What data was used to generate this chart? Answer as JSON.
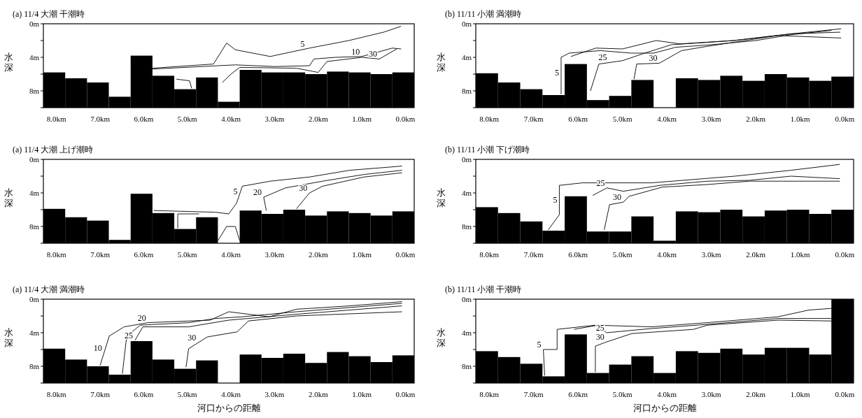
{
  "chart_data": [
    {
      "type": "bar",
      "title": "(a) 11/4  大潮  干潮時",
      "ylabel": "水深",
      "xlim": [
        8.3,
        -0.2
      ],
      "ylim": [
        10,
        0
      ],
      "xticks": [
        {
          "value": 8,
          "label": "8.0km"
        },
        {
          "value": 7,
          "label": "7.0km"
        },
        {
          "value": 6,
          "label": "6.0km"
        },
        {
          "value": 5,
          "label": "5.0km"
        },
        {
          "value": 4,
          "label": "4.0km"
        },
        {
          "value": 3,
          "label": "3.0km"
        },
        {
          "value": 2,
          "label": "2.0km"
        },
        {
          "value": 1,
          "label": "1.0km"
        },
        {
          "value": 0,
          "label": "0.0km"
        }
      ],
      "yticks": [
        {
          "value": 0,
          "label": "0m"
        },
        {
          "value": 2,
          "label": null
        },
        {
          "value": 4,
          "label": "4m"
        },
        {
          "value": 6,
          "label": null
        },
        {
          "value": 8,
          "label": "8m"
        },
        {
          "value": 10,
          "label": null
        }
      ],
      "x": [
        8.05,
        7.55,
        7.05,
        6.55,
        6.05,
        5.55,
        5.05,
        4.55,
        4.05,
        3.55,
        3.05,
        2.55,
        2.05,
        1.55,
        1.05,
        0.55,
        0.05
      ],
      "line_style": "solid",
      "marker": "none",
      "series": [
        {
          "color": "#000000",
          "base": [
            5.8,
            6.5,
            7.0,
            8.7,
            3.8,
            6.2,
            7.8,
            6.4,
            9.3,
            5.5,
            5.8,
            5.8,
            6.0,
            5.7,
            5.8,
            6.0,
            5.8
          ],
          "values": [
            4.2,
            3.5,
            3.0,
            1.3,
            6.2,
            3.8,
            2.2,
            3.6,
            0.7,
            4.5,
            4.2,
            4.2,
            4.0,
            4.3,
            4.2,
            4.0,
            4.2
          ]
        },
        {
          "type": "line",
          "color": "#000000",
          "x": [
            5.8,
            4.4,
            4.1,
            3.9,
            3.1,
            2.2,
            1.3,
            0.5,
            0.1
          ],
          "values": [
            5.3,
            4.8,
            2.3,
            3.1,
            3.9,
            2.9,
            2.0,
            1.0,
            0.3
          ]
        },
        {
          "type": "line",
          "color": "#000000",
          "x": [
            5.8,
            4.3,
            3.9,
            3.0,
            2.2,
            2.1,
            1.6,
            1.0,
            0.3,
            0.1
          ],
          "values": [
            5.4,
            5.0,
            4.9,
            5.1,
            5.0,
            4.2,
            4.0,
            3.9,
            2.9,
            3.0
          ]
        },
        {
          "type": "line",
          "color": "#000000",
          "x": [
            4.2,
            4.0,
            3.8,
            2.5,
            2.0,
            1.8,
            1.0,
            0.6,
            0.2
          ],
          "values": [
            7.0,
            6.0,
            5.2,
            5.3,
            5.8,
            4.5,
            4.0,
            4.2,
            3.0
          ]
        },
        {
          "type": "line",
          "color": "#000000",
          "x": [
            5.25,
            4.95,
            4.9
          ],
          "values": [
            6.6,
            6.8,
            7.7
          ]
        }
      ],
      "annotations": [
        {
          "text": "5",
          "x": 2.26,
          "y": 3.0
        },
        {
          "text": "10",
          "x": 1.0,
          "y": 3.9
        },
        {
          "text": "30",
          "x": 0.6,
          "y": 4.2
        }
      ]
    },
    {
      "type": "bar",
      "title": "(b) 11/11  小潮  満潮時",
      "ylabel": "水深",
      "xlim": [
        8.3,
        -0.2
      ],
      "ylim": [
        10,
        0
      ],
      "xticks": [
        {
          "value": 8,
          "label": "8.0km"
        },
        {
          "value": 7,
          "label": "7.0km"
        },
        {
          "value": 6,
          "label": "6.0km"
        },
        {
          "value": 5,
          "label": "5.0km"
        },
        {
          "value": 4,
          "label": "4.0km"
        },
        {
          "value": 3,
          "label": "3.0km"
        },
        {
          "value": 2,
          "label": "2.0km"
        },
        {
          "value": 1,
          "label": "1.0km"
        },
        {
          "value": 0,
          "label": "0.0km"
        }
      ],
      "yticks": [
        {
          "value": 0,
          "label": "0m"
        },
        {
          "value": 2,
          "label": null
        },
        {
          "value": 4,
          "label": "4m"
        },
        {
          "value": 6,
          "label": null
        },
        {
          "value": 8,
          "label": "8m"
        },
        {
          "value": 10,
          "label": null
        }
      ],
      "x": [
        8.05,
        7.55,
        7.05,
        6.55,
        6.05,
        5.55,
        5.05,
        4.55,
        4.05,
        3.55,
        3.05,
        2.55,
        2.05,
        1.55,
        1.05,
        0.55,
        0.05
      ],
      "line_style": "solid",
      "marker": "none",
      "series": [
        {
          "color": "#000000",
          "base": [
            5.9,
            7.0,
            7.8,
            8.5,
            4.8,
            9.1,
            8.6,
            6.7,
            null,
            6.5,
            6.7,
            6.2,
            6.8,
            6.0,
            6.4,
            6.8,
            6.3
          ],
          "values": [
            4.1,
            3.0,
            2.2,
            1.5,
            5.2,
            0.9,
            1.4,
            3.3,
            null,
            3.5,
            3.3,
            3.8,
            3.2,
            4.0,
            3.6,
            3.2,
            3.7
          ]
        },
        {
          "type": "line",
          "color": "#000000",
          "x": [
            6.38,
            6.38,
            6.2,
            5.5,
            4.8,
            4.3,
            3.8,
            3.0,
            2.0,
            1.2,
            0.3
          ],
          "values": [
            8.4,
            4.0,
            3.5,
            3.2,
            3.5,
            3.5,
            2.8,
            2.5,
            2.0,
            1.3,
            0.8
          ]
        },
        {
          "type": "line",
          "color": "#000000",
          "x": [
            6.16,
            5.6,
            5.0,
            4.24,
            3.7,
            2.5,
            1.2,
            0.08
          ],
          "values": [
            3.9,
            2.9,
            3.0,
            2.0,
            2.4,
            2.0,
            1.2,
            0.6
          ]
        },
        {
          "type": "line",
          "color": "#000000",
          "x": [
            5.72,
            5.53,
            5.0,
            4.5,
            3.9,
            2.5,
            1.2,
            0.1
          ],
          "values": [
            8.0,
            4.8,
            4.4,
            3.5,
            2.5,
            2.0,
            1.2,
            1.0
          ]
        },
        {
          "type": "line",
          "color": "#000000",
          "x": [
            4.74,
            4.68,
            4.17,
            3.67,
            3.1,
            1.5,
            0.08
          ],
          "values": [
            6.6,
            4.8,
            4.7,
            3.2,
            2.7,
            1.4,
            1.7
          ]
        }
      ],
      "annotations": [
        {
          "text": "5",
          "x": 6.38,
          "y": 6.4
        },
        {
          "text": "25",
          "x": 5.3,
          "y": 4.6
        },
        {
          "text": "30",
          "x": 4.17,
          "y": 4.7
        }
      ]
    },
    {
      "type": "bar",
      "title": "(a) 11/4  大潮  上げ潮時",
      "ylabel": "水深",
      "xlim": [
        8.3,
        -0.2
      ],
      "ylim": [
        10,
        0
      ],
      "xticks": [
        {
          "value": 8,
          "label": "8.0km"
        },
        {
          "value": 7,
          "label": "7.0km"
        },
        {
          "value": 6,
          "label": "6.0km"
        },
        {
          "value": 5,
          "label": "5.0km"
        },
        {
          "value": 4,
          "label": "4.0km"
        },
        {
          "value": 3,
          "label": "3.0km"
        },
        {
          "value": 2,
          "label": "2.0km"
        },
        {
          "value": 1,
          "label": "1.0km"
        },
        {
          "value": 0,
          "label": "0.0km"
        }
      ],
      "yticks": [
        {
          "value": 0,
          "label": "0m"
        },
        {
          "value": 2,
          "label": null
        },
        {
          "value": 4,
          "label": "4m"
        },
        {
          "value": 6,
          "label": null
        },
        {
          "value": 8,
          "label": "8m"
        },
        {
          "value": 10,
          "label": null
        }
      ],
      "x": [
        8.05,
        7.55,
        7.05,
        6.55,
        6.05,
        5.55,
        5.05,
        4.55,
        4.05,
        3.55,
        3.05,
        2.55,
        2.05,
        1.55,
        1.05,
        0.55,
        0.05
      ],
      "line_style": "solid",
      "marker": "none",
      "series": [
        {
          "color": "#000000",
          "base": [
            5.9,
            6.9,
            7.3,
            9.6,
            4.1,
            6.4,
            8.3,
            6.9,
            null,
            6.1,
            6.5,
            6.0,
            6.7,
            6.2,
            6.4,
            6.7,
            6.2
          ],
          "values": [
            4.1,
            3.1,
            2.7,
            0.4,
            5.9,
            3.6,
            1.7,
            3.1,
            null,
            3.9,
            3.5,
            4.0,
            3.3,
            3.8,
            3.6,
            3.3,
            3.8
          ]
        },
        {
          "type": "line",
          "color": "#000000",
          "x": [
            5.77,
            4.36,
            4.05,
            3.87,
            3.74,
            3.1,
            2.2,
            1.28,
            0.08
          ],
          "values": [
            6.1,
            6.3,
            6.5,
            5.2,
            3.2,
            2.6,
            2.1,
            1.3,
            0.8
          ]
        },
        {
          "type": "line",
          "color": "#000000",
          "x": [
            3.19,
            3.25,
            2.75,
            1.9,
            0.95,
            0.08
          ],
          "values": [
            6.1,
            4.5,
            3.4,
            2.6,
            1.8,
            1.3
          ]
        },
        {
          "type": "line",
          "color": "#000000",
          "x": [
            2.5,
            2.2,
            1.9,
            0.95,
            0.08
          ],
          "values": [
            5.9,
            4.0,
            3.2,
            2.1,
            1.6
          ]
        },
        {
          "type": "line",
          "color": "#000000",
          "x": [
            5.22,
            5.22,
            4.73
          ],
          "values": [
            8.2,
            6.5,
            6.5
          ]
        },
        {
          "type": "line",
          "color": "#000000",
          "x": [
            4.3,
            4.1,
            3.9,
            3.8
          ],
          "values": [
            9.7,
            8.0,
            8.0,
            9.7
          ]
        }
      ],
      "annotations": [
        {
          "text": "5",
          "x": 3.8,
          "y": 4.4
        },
        {
          "text": "20",
          "x": 3.25,
          "y": 4.5
        },
        {
          "text": "30",
          "x": 2.2,
          "y": 4.0
        }
      ]
    },
    {
      "type": "bar",
      "title": "(b) 11/11  小潮  下げ潮時",
      "ylabel": "水深",
      "xlim": [
        8.3,
        -0.2
      ],
      "ylim": [
        10,
        0
      ],
      "xticks": [
        {
          "value": 8,
          "label": "8.0km"
        },
        {
          "value": 7,
          "label": "7.0km"
        },
        {
          "value": 6,
          "label": "6.0km"
        },
        {
          "value": 5,
          "label": "5.0km"
        },
        {
          "value": 4,
          "label": "4.0km"
        },
        {
          "value": 3,
          "label": "3.0km"
        },
        {
          "value": 2,
          "label": "2.0km"
        },
        {
          "value": 1,
          "label": "1.0km"
        },
        {
          "value": 0,
          "label": "0.0km"
        }
      ],
      "yticks": [
        {
          "value": 0,
          "label": "0m"
        },
        {
          "value": 2,
          "label": null
        },
        {
          "value": 4,
          "label": "4m"
        },
        {
          "value": 6,
          "label": null
        },
        {
          "value": 8,
          "label": "8m"
        },
        {
          "value": 10,
          "label": null
        }
      ],
      "x": [
        8.05,
        7.55,
        7.05,
        6.55,
        6.05,
        5.55,
        5.05,
        4.55,
        4.05,
        3.55,
        3.05,
        2.55,
        2.05,
        1.55,
        1.05,
        0.55,
        0.05
      ],
      "line_style": "solid",
      "marker": "none",
      "series": [
        {
          "color": "#000000",
          "base": [
            5.7,
            6.4,
            7.4,
            8.5,
            4.4,
            8.6,
            8.6,
            6.8,
            9.7,
            6.2,
            6.3,
            6.0,
            6.8,
            6.1,
            6.0,
            6.5,
            6.0
          ],
          "values": [
            4.3,
            3.6,
            2.6,
            1.5,
            5.6,
            1.4,
            1.4,
            3.2,
            0.3,
            3.8,
            3.7,
            4.0,
            3.2,
            3.9,
            4.0,
            3.5,
            4.0
          ]
        },
        {
          "type": "line",
          "color": "#000000",
          "x": [
            6.67,
            6.42,
            6.42,
            5.9,
            4.35,
            2.47,
            1.21,
            0.11
          ],
          "values": [
            8.4,
            6.6,
            3.1,
            2.8,
            2.8,
            2.0,
            1.3,
            0.6
          ]
        },
        {
          "type": "line",
          "color": "#000000",
          "x": [
            5.67,
            5.35,
            4.98,
            4.16,
            3.09,
            2.15,
            1.21,
            0.11
          ],
          "values": [
            4.3,
            3.4,
            3.8,
            3.1,
            2.6,
            2.5,
            2.0,
            2.3
          ]
        },
        {
          "type": "line",
          "color": "#000000",
          "x": [
            5.41,
            5.29,
            4.98,
            4.85,
            4.1,
            3.09,
            2.15,
            0.11
          ],
          "values": [
            8.4,
            5.4,
            5.1,
            4.4,
            3.3,
            3.0,
            2.6,
            2.6
          ]
        }
      ],
      "annotations": [
        {
          "text": "5",
          "x": 6.42,
          "y": 5.4
        },
        {
          "text": "25",
          "x": 5.35,
          "y": 3.4
        },
        {
          "text": "30",
          "x": 4.98,
          "y": 5.1
        }
      ]
    },
    {
      "type": "bar",
      "title": "(a) 11/4  大潮  満潮時",
      "ylabel": "水深",
      "xlabel": "河口からの距離",
      "xlim": [
        8.3,
        -0.2
      ],
      "ylim": [
        10,
        0
      ],
      "xticks": [
        {
          "value": 8,
          "label": "8.0km"
        },
        {
          "value": 7,
          "label": "7.0km"
        },
        {
          "value": 6,
          "label": "6.0km"
        },
        {
          "value": 5,
          "label": "5.0km"
        },
        {
          "value": 4,
          "label": "4.0km"
        },
        {
          "value": 3,
          "label": "3.0km"
        },
        {
          "value": 2,
          "label": "2.0km"
        },
        {
          "value": 1,
          "label": "1.0km"
        },
        {
          "value": 0,
          "label": "0.0km"
        }
      ],
      "yticks": [
        {
          "value": 0,
          "label": "0m"
        },
        {
          "value": 2,
          "label": null
        },
        {
          "value": 4,
          "label": "4m"
        },
        {
          "value": 6,
          "label": null
        },
        {
          "value": 8,
          "label": "8m"
        },
        {
          "value": 10,
          "label": null
        }
      ],
      "x": [
        8.05,
        7.55,
        7.05,
        6.55,
        6.05,
        5.55,
        5.05,
        4.55,
        4.05,
        3.55,
        3.05,
        2.55,
        2.05,
        1.55,
        1.05,
        0.55,
        0.05
      ],
      "line_style": "solid",
      "marker": "none",
      "series": [
        {
          "color": "#000000",
          "base": [
            5.9,
            7.2,
            8.0,
            9.0,
            5.0,
            7.2,
            8.3,
            7.3,
            null,
            6.6,
            7.0,
            6.5,
            7.6,
            6.3,
            6.8,
            7.5,
            6.7
          ],
          "values": [
            4.1,
            2.8,
            2.0,
            1.0,
            5.0,
            2.8,
            1.7,
            2.7,
            null,
            3.4,
            3.0,
            3.5,
            2.4,
            3.7,
            3.2,
            2.5,
            3.3
          ]
        },
        {
          "type": "line",
          "color": "#000000",
          "x": [
            7.0,
            6.79,
            6.45,
            5.9,
            4.48,
            4.05,
            3.13,
            2.5,
            1.28,
            0.08
          ],
          "values": [
            7.9,
            4.4,
            3.3,
            2.8,
            2.5,
            1.5,
            2.1,
            1.2,
            0.8,
            0.3
          ]
        },
        {
          "type": "line",
          "color": "#000000",
          "x": [
            6.49,
            6.39,
            6.08,
            4.97,
            4.36,
            3.74,
            2.5,
            0.08
          ],
          "values": [
            8.9,
            4.4,
            3.1,
            2.8,
            2.3,
            2.1,
            1.5,
            0.5
          ]
        },
        {
          "type": "line",
          "color": "#000000",
          "x": [
            6.2,
            6.02,
            4.97,
            4.05,
            2.5,
            0.08
          ],
          "values": [
            4.9,
            3.3,
            3.3,
            2.5,
            1.8,
            0.8
          ]
        },
        {
          "type": "line",
          "color": "#000000",
          "x": [
            5.03,
            4.97,
            4.54,
            3.86,
            3.6,
            2.5,
            0.08
          ],
          "values": [
            8.1,
            5.9,
            4.5,
            3.9,
            2.6,
            2.0,
            1.5
          ]
        }
      ],
      "annotations": [
        {
          "text": "10",
          "x": 6.91,
          "y": 6.4
        },
        {
          "text": "20",
          "x": 5.9,
          "y": 2.8
        },
        {
          "text": "25",
          "x": 6.2,
          "y": 4.9
        },
        {
          "text": "30",
          "x": 4.75,
          "y": 5.2
        }
      ]
    },
    {
      "type": "bar",
      "title": "(b) 11/11  小潮  干潮時",
      "ylabel": "水深",
      "xlabel": "河口からの距離",
      "xlim": [
        8.3,
        -0.2
      ],
      "ylim": [
        10,
        0
      ],
      "xticks": [
        {
          "value": 8,
          "label": "8.0km"
        },
        {
          "value": 7,
          "label": "7.0km"
        },
        {
          "value": 6,
          "label": "6.0km"
        },
        {
          "value": 5,
          "label": "5.0km"
        },
        {
          "value": 4,
          "label": "4.0km"
        },
        {
          "value": 3,
          "label": "3.0km"
        },
        {
          "value": 2,
          "label": "2.0km"
        },
        {
          "value": 1,
          "label": "1.0km"
        },
        {
          "value": 0,
          "label": "0.0km"
        }
      ],
      "yticks": [
        {
          "value": 0,
          "label": "0m"
        },
        {
          "value": 2,
          "label": null
        },
        {
          "value": 4,
          "label": "4m"
        },
        {
          "value": 6,
          "label": null
        },
        {
          "value": 8,
          "label": "8m"
        },
        {
          "value": 10,
          "label": null
        }
      ],
      "x": [
        8.05,
        7.55,
        7.05,
        6.55,
        6.05,
        5.55,
        5.05,
        4.55,
        4.05,
        3.55,
        3.05,
        2.55,
        2.05,
        1.55,
        1.05,
        0.55,
        0.05
      ],
      "line_style": "solid",
      "marker": "none",
      "series": [
        {
          "color": "#000000",
          "base": [
            6.2,
            6.9,
            7.7,
            9.2,
            4.2,
            8.8,
            7.8,
            6.8,
            8.8,
            6.2,
            6.4,
            5.9,
            6.6,
            5.8,
            5.8,
            6.6,
            0
          ],
          "values": [
            3.8,
            3.1,
            2.3,
            0.8,
            5.8,
            1.2,
            2.2,
            3.2,
            1.2,
            3.8,
            3.6,
            4.1,
            3.4,
            4.2,
            4.2,
            3.4,
            10
          ]
        },
        {
          "type": "line",
          "color": "#000000",
          "x": [
            6.75,
            6.78,
            6.47,
            6.47,
            5.61,
            4.35,
            3.09,
            1.5,
            0.81,
            0.3
          ],
          "values": [
            9.1,
            6.0,
            6.0,
            3.6,
            3.1,
            3.3,
            2.8,
            2.1,
            1.3,
            1.1
          ]
        },
        {
          "type": "line",
          "color": "#000000",
          "x": [
            6.09,
            5.55,
            5.36,
            4.35,
            3.09,
            1.5,
            0.3
          ],
          "values": [
            3.6,
            3.1,
            4.0,
            3.5,
            3.0,
            2.3,
            2.3
          ]
        },
        {
          "type": "line",
          "color": "#000000",
          "x": [
            5.61,
            5.61,
            5.36,
            4.79,
            3.4,
            3.09,
            1.5,
            0.3
          ],
          "values": [
            8.7,
            5.6,
            5.1,
            4.1,
            3.6,
            3.1,
            2.5,
            2.6
          ]
        }
      ],
      "annotations": [
        {
          "text": "5",
          "x": 6.78,
          "y": 6.0
        },
        {
          "text": "25",
          "x": 5.36,
          "y": 4.0
        },
        {
          "text": "30",
          "x": 5.36,
          "y": 5.1
        }
      ]
    }
  ]
}
